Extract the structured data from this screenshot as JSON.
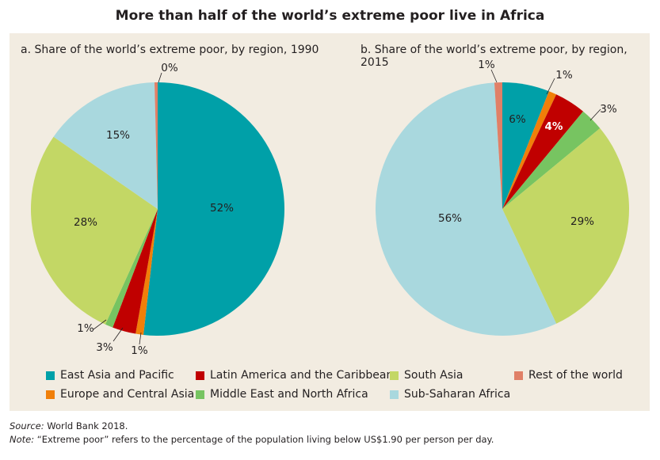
{
  "title": "More than half of the world’s extreme poor live in Africa",
  "colors": {
    "East Asia and Pacific": "#00a0a8",
    "Europe and Central Asia": "#f07f09",
    "Latin America and the Caribbean": "#c00000",
    "Middle East and North Africa": "#77c461",
    "South Asia": "#c3d765",
    "Sub-Saharan Africa": "#a9d8de",
    "Rest of the world": "#e08067"
  },
  "chart_data": [
    {
      "type": "pie",
      "title": "a. Share of the world’s extreme poor, by region, 1990",
      "slices": [
        {
          "name": "East Asia and Pacific",
          "value": 52,
          "label": "52%"
        },
        {
          "name": "Europe and Central Asia",
          "value": 1,
          "label": "1%"
        },
        {
          "name": "Latin America and the Caribbean",
          "value": 3,
          "label": "3%"
        },
        {
          "name": "Middle East and North Africa",
          "value": 1,
          "label": "1%"
        },
        {
          "name": "South Asia",
          "value": 28,
          "label": "28%"
        },
        {
          "name": "Sub-Saharan Africa",
          "value": 15,
          "label": "15%"
        },
        {
          "name": "Rest of the world",
          "value": 0.4,
          "label": "0%"
        }
      ]
    },
    {
      "type": "pie",
      "title": "b. Share of the world’s extreme poor, by region, 2015",
      "slices": [
        {
          "name": "East Asia and Pacific",
          "value": 6,
          "label": "6%"
        },
        {
          "name": "Europe and Central Asia",
          "value": 1,
          "label": "1%"
        },
        {
          "name": "Latin America and the Caribbean",
          "value": 4,
          "label": "4%"
        },
        {
          "name": "Middle East and North Africa",
          "value": 3,
          "label": "3%"
        },
        {
          "name": "South Asia",
          "value": 29,
          "label": "29%"
        },
        {
          "name": "Sub-Saharan Africa",
          "value": 56,
          "label": "56%"
        },
        {
          "name": "Rest of the world",
          "value": 1,
          "label": "1%"
        }
      ]
    }
  ],
  "legend": [
    "East Asia and Pacific",
    "Latin America and the Caribbean",
    "South Asia",
    "Rest of the world",
    "Europe and Central Asia",
    "Middle East and North Africa",
    "Sub-Saharan Africa"
  ],
  "notes": {
    "source_label": "Source:",
    "source_text": " World Bank 2018.",
    "note_label": "Note:",
    "note_text": " “Extreme poor” refers to the percentage of the population living below US$1.90 per person per day."
  }
}
